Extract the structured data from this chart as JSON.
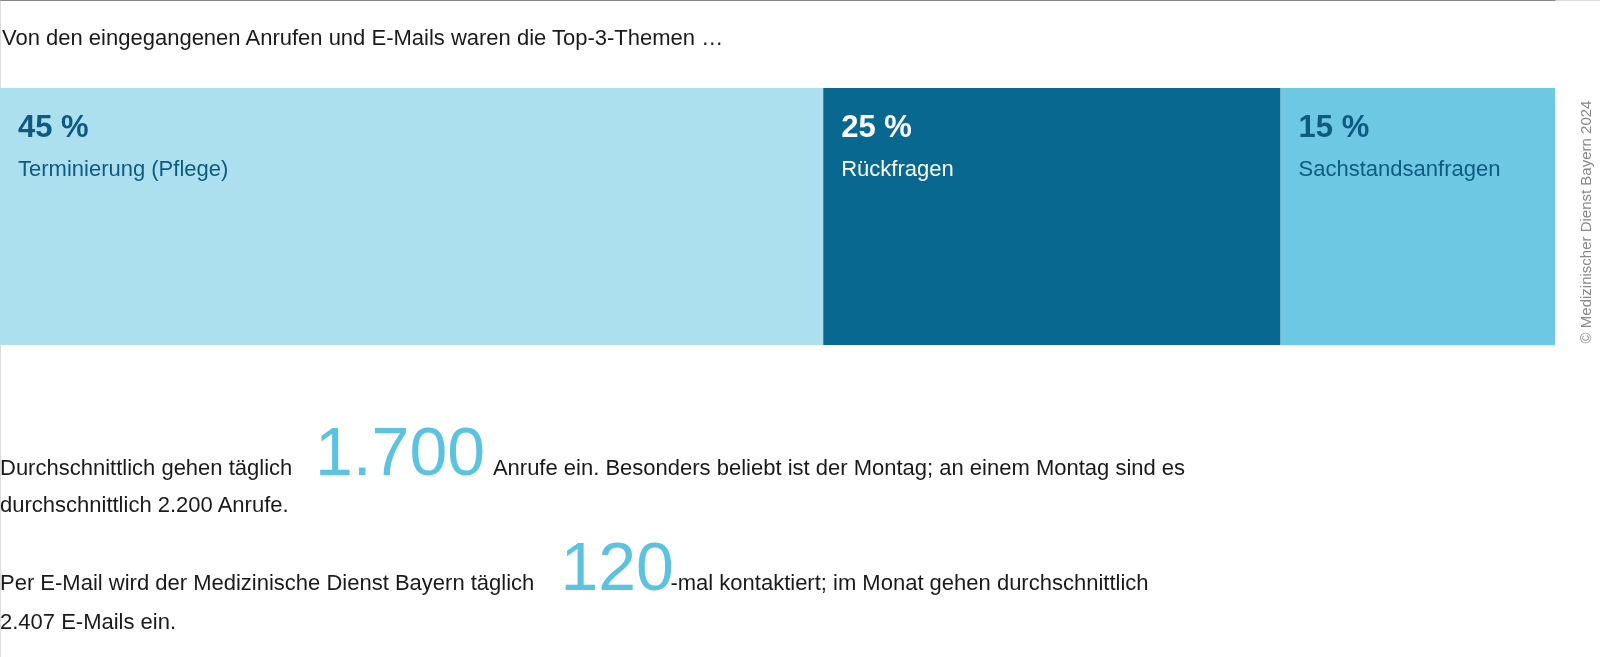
{
  "chart_data": {
    "type": "bar",
    "orientation": "horizontal",
    "stacked": true,
    "title": "Von den eingegangenen Anrufen und E-Mails waren die Top-3-Themen …",
    "categories": [
      null
    ],
    "series": [
      {
        "name": "Terminierung (Pflege)",
        "color": "#ade0ee",
        "values": [
          45
        ],
        "value_labels": [
          "45 %"
        ]
      },
      {
        "name": "Rückfragen",
        "color": "#08688f",
        "values": [
          25
        ],
        "value_labels": [
          "25 %"
        ]
      },
      {
        "name": "Sachstandsanfragen",
        "color": "#6dc8e3",
        "values": [
          15
        ],
        "value_labels": [
          "15 %"
        ]
      }
    ],
    "annotations": [
      "Durchschnittlich gehen täglich",
      "1.700",
      "Anrufe ein. Besonders beliebt ist der Montag; an einem Montag sind es",
      "durchschnittlich 2.200 Anrufe.",
      "Per E-Mail wird der Medizinische Dienst Bayern täglich",
      "120",
      "-mal kontaktiert; im Monat gehen durchschnittlich",
      "2.407 E-Mails ein.",
      "© Medizinischer Dienst Bayern 2024"
    ]
  }
}
